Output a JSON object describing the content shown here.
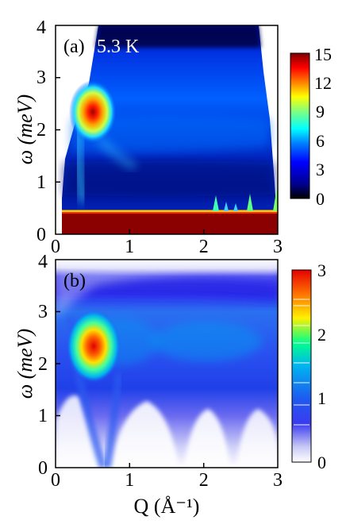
{
  "chart_data": [
    {
      "type": "heatmap",
      "panel_label": "(a)",
      "annotation": "5.3 K",
      "xlabel": "",
      "ylabel": "ω (meV)",
      "xlim": [
        0,
        3
      ],
      "ylim": [
        0,
        4
      ],
      "x_ticks": [
        "0",
        "1",
        "2",
        "3"
      ],
      "y_ticks": [
        "0",
        "1",
        "2",
        "3",
        "4"
      ],
      "colorbar": {
        "ticks": [
          "0",
          "3",
          "6",
          "9",
          "12",
          "15"
        ],
        "range": [
          0,
          15
        ]
      },
      "features": {
        "mode_peak": {
          "Q": 0.5,
          "omega": 2.35,
          "intensity": 15
        },
        "elastic_band": {
          "omega_max": 0.45,
          "intensity": 15
        },
        "bragg_peaks_Q": [
          2.1,
          2.55,
          3.0
        ]
      }
    },
    {
      "type": "heatmap",
      "panel_label": "(b)",
      "xlabel": "Q (Å⁻¹)",
      "ylabel": "ω (meV)",
      "xlim": [
        0,
        3
      ],
      "ylim": [
        0,
        4
      ],
      "x_ticks": [
        "0",
        "1",
        "2",
        "3"
      ],
      "y_ticks": [
        "0",
        "1",
        "2",
        "3",
        "4"
      ],
      "colorbar": {
        "ticks": [
          "0",
          "1",
          "2",
          "3"
        ],
        "range": [
          0,
          3
        ]
      },
      "features": {
        "mode_peak": {
          "Q": 0.5,
          "omega": 2.3,
          "intensity": 3
        },
        "dispersion_minima_Q": [
          0.65,
          1.35,
          2.0,
          2.6
        ]
      }
    }
  ],
  "colors": {
    "jet": [
      "#000000",
      "#00008f",
      "#0000ff",
      "#0080ff",
      "#00ffff",
      "#80ff80",
      "#ffff00",
      "#ff8000",
      "#ff0000",
      "#800000"
    ],
    "panel_b_scale": [
      "#ffffff",
      "#c8c8f5",
      "#3b3bf0",
      "#1e5af0",
      "#00b4f0",
      "#00ff8c",
      "#fff000",
      "#ff7800",
      "#e60000"
    ]
  }
}
